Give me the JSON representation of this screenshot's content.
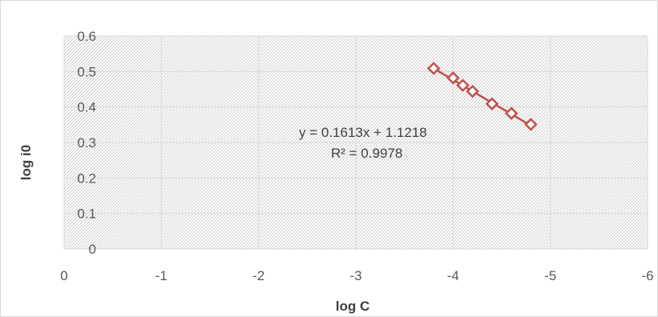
{
  "chart_data": {
    "type": "scatter",
    "title": "",
    "xlabel": "log C",
    "ylabel": "log i0",
    "xlim": [
      0,
      -6
    ],
    "ylim": [
      0,
      0.6
    ],
    "x_ticks": [
      0,
      -1,
      -2,
      -3,
      -4,
      -5,
      -6
    ],
    "x_tick_labels": [
      "0",
      "-1",
      "-2",
      "-3",
      "-4",
      "-5",
      "-6"
    ],
    "y_ticks": [
      0,
      0.1,
      0.2,
      0.3,
      0.4,
      0.5,
      0.6
    ],
    "y_tick_labels": [
      "0",
      "0.1",
      "0.2",
      "0.3",
      "0.4",
      "0.5",
      "0.6"
    ],
    "grid": true,
    "legend": "none",
    "marker": "diamond-open",
    "series": [
      {
        "x": [
          -3.8,
          -4.0,
          -4.1,
          -4.2,
          -4.4,
          -4.6,
          -4.8
        ],
        "y": [
          0.509,
          0.482,
          0.461,
          0.444,
          0.409,
          0.382,
          0.351
        ],
        "color": "#c0504d"
      }
    ],
    "trendline": {
      "type": "linear",
      "slope": 0.1613,
      "intercept": 1.1218,
      "x_range": [
        -3.8,
        -4.8
      ],
      "color": "#c0504d"
    },
    "annotations": {
      "equation": "y = 0.1613x + 1.1218",
      "r_squared": "R² = 0.9978"
    }
  }
}
